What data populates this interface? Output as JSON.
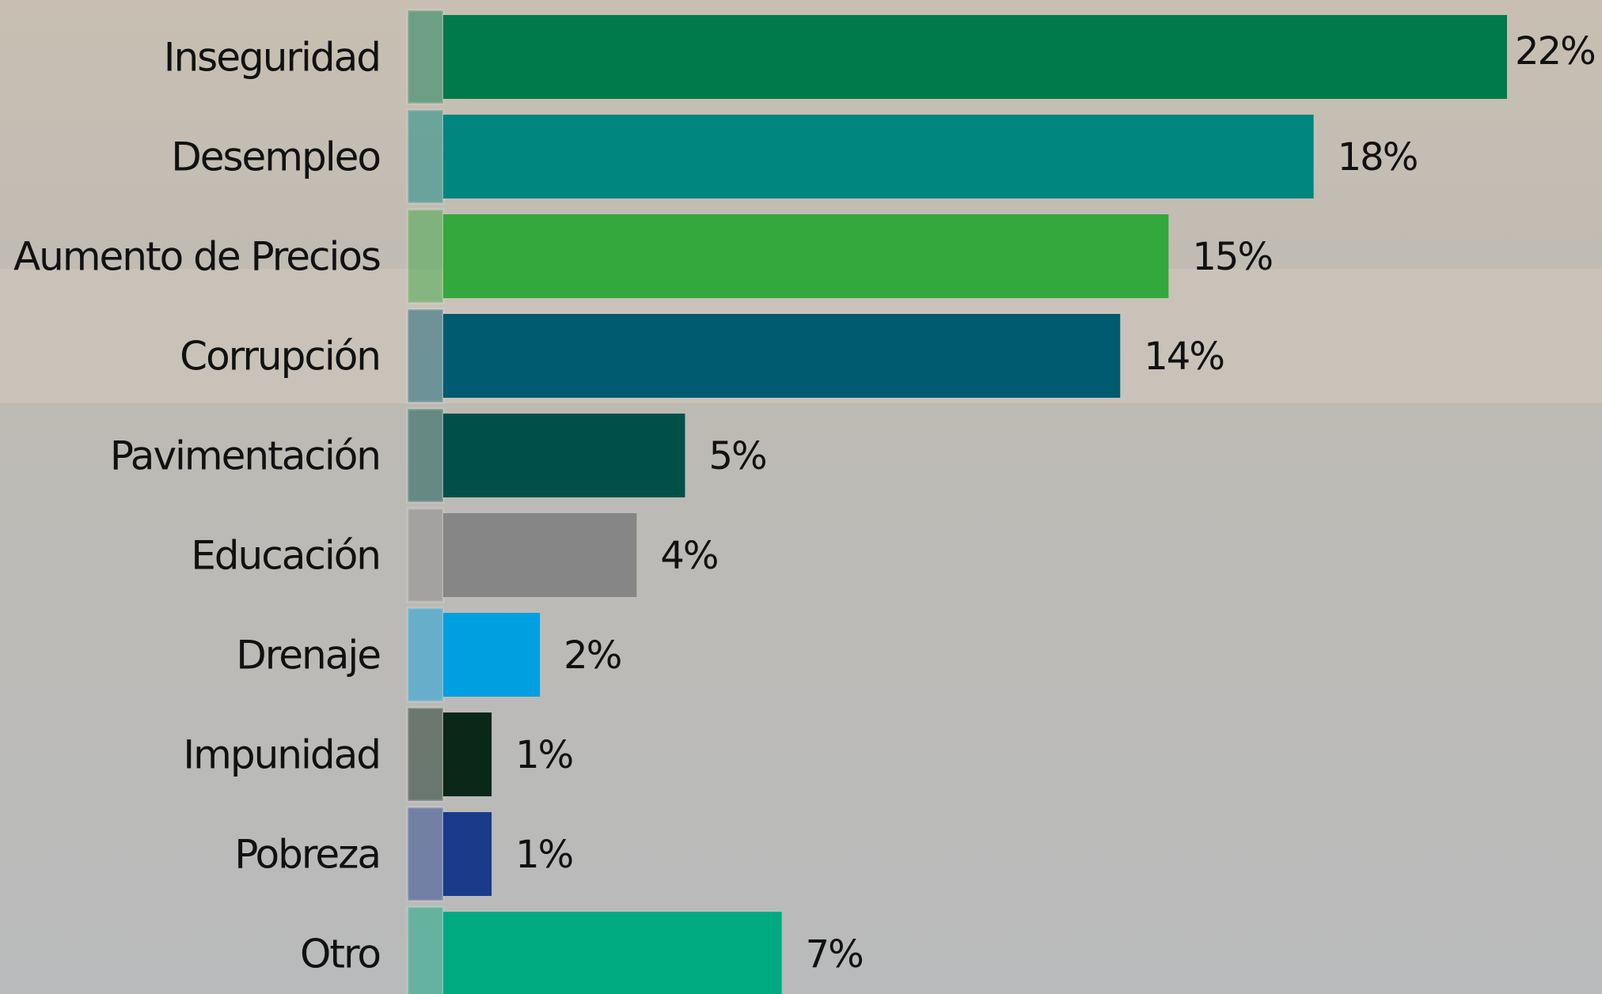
{
  "chart_data": {
    "type": "bar",
    "orientation": "horizontal",
    "categories": [
      "Inseguridad",
      "Desempleo",
      "Aumento de Precios",
      "Corrupción",
      "Pavimentación",
      "Educación",
      "Drenaje",
      "Impunidad",
      "Pobreza",
      "Otro"
    ],
    "values": [
      22,
      18,
      15,
      14,
      5,
      4,
      2,
      1,
      1,
      7
    ],
    "value_labels": [
      "22%",
      "18%",
      "15%",
      "14%",
      "5%",
      "4%",
      "2%",
      "1%",
      "1%",
      "7%"
    ],
    "colors": [
      "#007a4b",
      "#00857f",
      "#33a83c",
      "#005a70",
      "#00504a",
      "#868686",
      "#00a0e0",
      "#0b2718",
      "#1a3a8a",
      "#00aa80"
    ]
  }
}
